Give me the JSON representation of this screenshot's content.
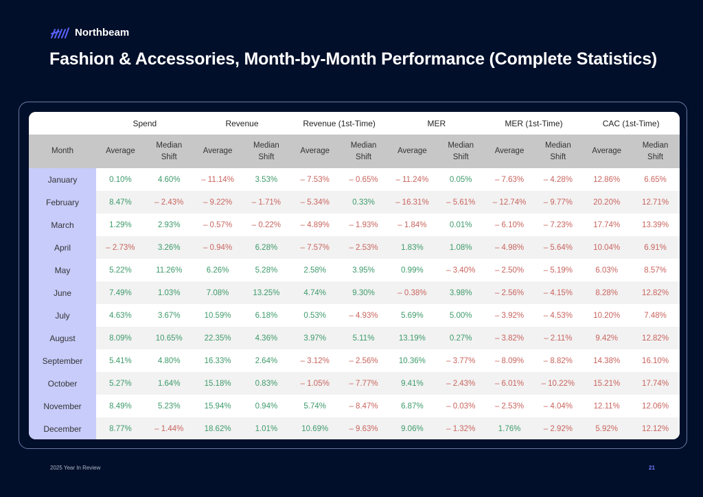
{
  "brand": {
    "name": "Northbeam",
    "logo_color": "#5b63ff"
  },
  "title": "Fashion & Accessories, Month-by-Month Performance (Complete Statistics)",
  "table": {
    "month_header": "Month",
    "groups": [
      {
        "label": "Spend",
        "higher_is_better": true
      },
      {
        "label": "Revenue",
        "higher_is_better": true
      },
      {
        "label": "Revenue (1st-Time)",
        "higher_is_better": true
      },
      {
        "label": "MER",
        "higher_is_better": true
      },
      {
        "label": "MER (1st-Time)",
        "higher_is_better": true
      },
      {
        "label": "CAC (1st-Time)",
        "higher_is_better": false
      }
    ],
    "sub_headers": [
      "Average",
      "Median Shift"
    ],
    "colors": {
      "good": "#3d9a6a",
      "bad": "#c8645e",
      "month_bg": "#c8ccfb",
      "header_bg": "#c7c7c7"
    },
    "rows": [
      {
        "month": "January",
        "values": [
          "0.10%",
          "4.60%",
          "– 11.14%",
          "3.53%",
          "– 7.53%",
          "– 0.65%",
          "– 11.24%",
          "0.05%",
          "– 7.63%",
          "– 4.28%",
          "12.86%",
          "6.65%"
        ]
      },
      {
        "month": "February",
        "values": [
          "8.47%",
          "– 2.43%",
          "– 9.22%",
          "– 1.71%",
          "– 5.34%",
          "0.33%",
          "– 16.31%",
          "– 5.61%",
          "– 12.74%",
          "– 9.77%",
          "20.20%",
          "12.71%"
        ]
      },
      {
        "month": "March",
        "values": [
          "1.29%",
          "2.93%",
          "– 0.57%",
          "– 0.22%",
          "– 4.89%",
          "– 1.93%",
          "– 1.84%",
          "0.01%",
          "– 6.10%",
          "– 7.23%",
          "17.74%",
          "13.39%"
        ]
      },
      {
        "month": "April",
        "values": [
          "– 2.73%",
          "3.26%",
          "– 0.94%",
          "6.28%",
          "– 7.57%",
          "– 2.53%",
          "1.83%",
          "1.08%",
          "– 4.98%",
          "– 5.64%",
          "10.04%",
          "6.91%"
        ]
      },
      {
        "month": "May",
        "values": [
          "5.22%",
          "11.26%",
          "6.26%",
          "5.28%",
          "2.58%",
          "3.95%",
          "0.99%",
          "– 3.40%",
          "– 2.50%",
          "– 5.19%",
          "6.03%",
          "8.57%"
        ]
      },
      {
        "month": "June",
        "values": [
          "7.49%",
          "1.03%",
          "7.08%",
          "13.25%",
          "4.74%",
          "9.30%",
          "– 0.38%",
          "3.98%",
          "– 2.56%",
          "– 4.15%",
          "8.28%",
          "12.82%"
        ]
      },
      {
        "month": "July",
        "values": [
          "4.63%",
          "3.67%",
          "10.59%",
          "6.18%",
          "0.53%",
          "– 4.93%",
          "5.69%",
          "5.00%",
          "– 3.92%",
          "– 4.53%",
          "10.20%",
          "7.48%"
        ]
      },
      {
        "month": "August",
        "values": [
          "8.09%",
          "10.65%",
          "22.35%",
          "4.36%",
          "3.97%",
          "5.11%",
          "13.19%",
          "0.27%",
          "– 3.82%",
          "– 2.11%",
          "9.42%",
          "12.82%"
        ]
      },
      {
        "month": "September",
        "values": [
          "5.41%",
          "4.80%",
          "16.33%",
          "2.64%",
          "– 3.12%",
          "– 2.56%",
          "10.36%",
          "– 3.77%",
          "– 8.09%",
          "– 8.82%",
          "14.38%",
          "16.10%"
        ]
      },
      {
        "month": "October",
        "values": [
          "5.27%",
          "1.64%",
          "15.18%",
          "0.83%",
          "– 1.05%",
          "– 7.77%",
          "9.41%",
          "– 2.43%",
          "– 6.01%",
          "– 10.22%",
          "15.21%",
          "17.74%"
        ]
      },
      {
        "month": "November",
        "values": [
          "8.49%",
          "5.23%",
          "15.94%",
          "0.94%",
          "5.74%",
          "– 8.47%",
          "6.87%",
          "– 0.03%",
          "– 2.53%",
          "– 4.04%",
          "12.11%",
          "12.06%"
        ]
      },
      {
        "month": "December",
        "values": [
          "8.77%",
          "– 1.44%",
          "18.62%",
          "1.01%",
          "10.69%",
          "– 9.63%",
          "9.06%",
          "– 1.32%",
          "1.76%",
          "– 2.92%",
          "5.92%",
          "12.12%"
        ]
      }
    ]
  },
  "footer": {
    "left": "2025 Year In Review",
    "page_number": "21"
  }
}
